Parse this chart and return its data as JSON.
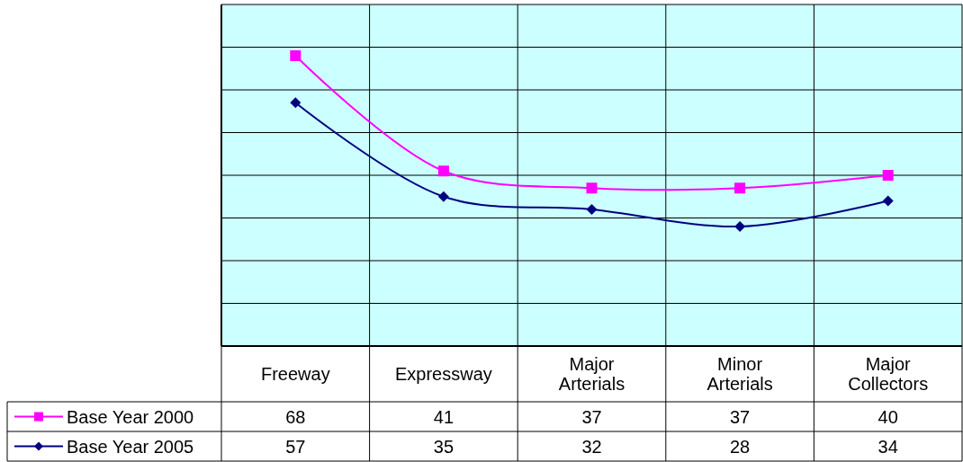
{
  "chart_data": {
    "type": "line",
    "categories": [
      "Freeway",
      "Expressway",
      "Major Arterials",
      "Minor Arterials",
      "Major Collectors"
    ],
    "series": [
      {
        "name": "Base Year 2000",
        "color": "#ff00ff",
        "marker": "square",
        "values": [
          68,
          41,
          37,
          37,
          40
        ]
      },
      {
        "name": "Base Year 2005",
        "color": "#000080",
        "marker": "diamond",
        "values": [
          57,
          35,
          32,
          28,
          34
        ]
      }
    ],
    "ylim": [
      0,
      80
    ],
    "yticks": [
      {
        "value": 0,
        "label": null
      },
      {
        "value": 10,
        "label": null
      },
      {
        "value": 20,
        "label": null
      },
      {
        "value": 30,
        "label": null
      },
      {
        "value": 40,
        "label": null
      },
      {
        "value": 50,
        "label": null
      },
      {
        "value": 60,
        "label": null
      },
      {
        "value": 70,
        "label": null
      },
      {
        "value": 80,
        "label": null
      }
    ],
    "tick_labels": "x",
    "grid": true,
    "data_labels": true,
    "legend": "bottom",
    "line_style": "solid"
  }
}
